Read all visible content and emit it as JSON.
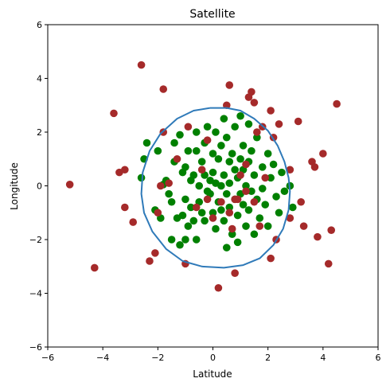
{
  "chart_data": {
    "type": "scatter",
    "title": "Satellite",
    "xlabel": "Latitude",
    "ylabel": "Longitude",
    "xlim": [
      -6,
      6
    ],
    "ylim": [
      -6,
      6
    ],
    "xticks": [
      -6,
      -4,
      -2,
      0,
      2,
      4,
      6
    ],
    "yticks": [
      -6,
      -4,
      -2,
      0,
      2,
      4,
      6
    ],
    "xtick_labels": [
      "−6",
      "−4",
      "−2",
      "0",
      "2",
      "4",
      "6"
    ],
    "ytick_labels": [
      "−6",
      "−4",
      "−2",
      "0",
      "2",
      "4",
      "6"
    ],
    "grid": false,
    "legend": "none",
    "series": [
      {
        "color": "#008000",
        "points": [
          [
            -2.6,
            0.3
          ],
          [
            -2.5,
            1.0
          ],
          [
            -2.4,
            1.6
          ],
          [
            -2.1,
            -0.9
          ],
          [
            -1.9,
            -1.2
          ],
          [
            -1.8,
            0.05
          ],
          [
            -1.7,
            0.2
          ],
          [
            -1.6,
            -0.3
          ],
          [
            -1.5,
            -0.6
          ],
          [
            -1.5,
            -2.0
          ],
          [
            -1.4,
            0.9
          ],
          [
            -1.4,
            1.6
          ],
          [
            -1.3,
            -1.2
          ],
          [
            -1.2,
            -2.2
          ],
          [
            -1.2,
            1.9
          ],
          [
            -1.1,
            0.5
          ],
          [
            -1.1,
            -1.1
          ],
          [
            -1.0,
            -2.0
          ],
          [
            -1.0,
            0.7
          ],
          [
            -1.0,
            -0.5
          ],
          [
            -0.9,
            -1.5
          ],
          [
            -0.9,
            1.3
          ],
          [
            -0.8,
            0.2
          ],
          [
            -0.8,
            -0.8
          ],
          [
            -0.7,
            -1.3
          ],
          [
            -0.7,
            0.4
          ],
          [
            -0.6,
            1.3
          ],
          [
            -0.6,
            -2.0
          ],
          [
            -0.5,
            0.0
          ],
          [
            -0.5,
            -0.6
          ],
          [
            -0.4,
            0.9
          ],
          [
            -0.4,
            -1.0
          ],
          [
            -0.3,
            0.4
          ],
          [
            -0.3,
            1.6
          ],
          [
            -0.3,
            -1.3
          ],
          [
            -0.2,
            -0.2
          ],
          [
            -0.2,
            2.2
          ],
          [
            -0.1,
            0.2
          ],
          [
            -0.1,
            -0.3
          ],
          [
            0.0,
            1.2
          ],
          [
            0.0,
            -1.0
          ],
          [
            0.0,
            0.5
          ],
          [
            0.1,
            0.1
          ],
          [
            0.1,
            -1.6
          ],
          [
            0.1,
            2.0
          ],
          [
            0.2,
            -0.6
          ],
          [
            0.2,
            1.0
          ],
          [
            0.3,
            0.0
          ],
          [
            0.3,
            -0.9
          ],
          [
            0.3,
            1.5
          ],
          [
            0.4,
            2.5
          ],
          [
            0.4,
            -1.3
          ],
          [
            0.4,
            0.4
          ],
          [
            0.5,
            -0.3
          ],
          [
            0.5,
            1.8
          ],
          [
            0.5,
            -2.3
          ],
          [
            0.6,
            0.9
          ],
          [
            0.6,
            -0.8
          ],
          [
            0.6,
            0.1
          ],
          [
            0.7,
            1.2
          ],
          [
            0.7,
            -1.8
          ],
          [
            0.8,
            -0.5
          ],
          [
            0.8,
            0.6
          ],
          [
            0.8,
            2.2
          ],
          [
            0.9,
            -1.1
          ],
          [
            0.9,
            0.3
          ],
          [
            0.9,
            -2.1
          ],
          [
            1.0,
            1.0
          ],
          [
            1.0,
            -0.3
          ],
          [
            1.1,
            1.5
          ],
          [
            1.1,
            -0.7
          ],
          [
            1.1,
            0.6
          ],
          [
            1.2,
            -1.5
          ],
          [
            1.2,
            0.0
          ],
          [
            1.3,
            2.3
          ],
          [
            1.3,
            -0.9
          ],
          [
            1.3,
            0.9
          ],
          [
            1.4,
            -0.2
          ],
          [
            1.4,
            1.3
          ],
          [
            1.5,
            -1.8
          ],
          [
            1.5,
            0.4
          ],
          [
            1.6,
            -0.5
          ],
          [
            1.6,
            1.8
          ],
          [
            1.7,
            -1.2
          ],
          [
            1.8,
            0.7
          ],
          [
            1.8,
            -0.1
          ],
          [
            1.9,
            -0.7
          ],
          [
            2.0,
            1.2
          ],
          [
            2.0,
            -1.5
          ],
          [
            2.1,
            0.3
          ],
          [
            2.2,
            0.8
          ],
          [
            2.3,
            -0.4
          ],
          [
            2.4,
            -1.0
          ],
          [
            2.5,
            0.5
          ],
          [
            2.6,
            -0.2
          ],
          [
            2.8,
            0.0
          ],
          [
            2.9,
            -0.8
          ],
          [
            -2.0,
            1.3
          ],
          [
            -0.6,
            2.0
          ],
          [
            1.0,
            2.6
          ]
        ]
      },
      {
        "color": "#a52a2a",
        "points": [
          [
            -5.2,
            0.05
          ],
          [
            -4.3,
            -3.05
          ],
          [
            -3.6,
            2.7
          ],
          [
            -3.4,
            0.5
          ],
          [
            -3.2,
            0.6
          ],
          [
            -3.2,
            -0.8
          ],
          [
            -2.9,
            -1.35
          ],
          [
            -2.6,
            4.5
          ],
          [
            -2.3,
            -2.8
          ],
          [
            -2.1,
            -2.5
          ],
          [
            -2.0,
            -1.0
          ],
          [
            -1.9,
            0.0
          ],
          [
            -1.8,
            3.6
          ],
          [
            -1.8,
            2.0
          ],
          [
            -1.6,
            0.1
          ],
          [
            -1.3,
            1.0
          ],
          [
            -1.0,
            -2.9
          ],
          [
            -0.9,
            2.2
          ],
          [
            -0.6,
            -0.8
          ],
          [
            -0.4,
            0.6
          ],
          [
            -0.2,
            -0.5
          ],
          [
            0.0,
            -1.2
          ],
          [
            0.2,
            -3.8
          ],
          [
            0.3,
            -0.6
          ],
          [
            0.5,
            3.0
          ],
          [
            0.6,
            3.75
          ],
          [
            0.6,
            -1.0
          ],
          [
            0.7,
            -1.6
          ],
          [
            0.8,
            -3.25
          ],
          [
            0.9,
            -0.5
          ],
          [
            1.0,
            0.4
          ],
          [
            1.2,
            -0.2
          ],
          [
            1.3,
            3.3
          ],
          [
            1.4,
            3.5
          ],
          [
            1.5,
            3.1
          ],
          [
            1.5,
            -0.6
          ],
          [
            1.6,
            2.0
          ],
          [
            1.7,
            -1.5
          ],
          [
            1.8,
            2.2
          ],
          [
            1.9,
            0.3
          ],
          [
            2.1,
            2.8
          ],
          [
            2.1,
            -2.7
          ],
          [
            2.2,
            1.8
          ],
          [
            2.3,
            -2.0
          ],
          [
            2.4,
            2.3
          ],
          [
            2.8,
            0.6
          ],
          [
            2.8,
            -1.2
          ],
          [
            3.1,
            2.4
          ],
          [
            3.2,
            -0.6
          ],
          [
            3.3,
            -1.5
          ],
          [
            3.6,
            0.9
          ],
          [
            3.7,
            0.7
          ],
          [
            3.8,
            -1.9
          ],
          [
            4.0,
            1.2
          ],
          [
            4.2,
            -2.9
          ],
          [
            4.3,
            -1.65
          ],
          [
            4.5,
            3.05
          ],
          [
            0.8,
            -0.5
          ],
          [
            -0.2,
            1.7
          ],
          [
            1.2,
            0.8
          ]
        ]
      }
    ],
    "boundary": {
      "color": "#2f7ab9",
      "points": [
        [
          -0.1,
          2.9
        ],
        [
          0.5,
          2.9
        ],
        [
          1.0,
          2.8
        ],
        [
          1.5,
          2.5
        ],
        [
          2.0,
          2.05
        ],
        [
          2.35,
          1.5
        ],
        [
          2.6,
          0.9
        ],
        [
          2.75,
          0.3
        ],
        [
          2.8,
          -0.2
        ],
        [
          2.75,
          -0.9
        ],
        [
          2.55,
          -1.6
        ],
        [
          2.2,
          -2.2
        ],
        [
          1.7,
          -2.7
        ],
        [
          1.1,
          -2.95
        ],
        [
          0.4,
          -3.05
        ],
        [
          -0.4,
          -3.0
        ],
        [
          -1.1,
          -2.8
        ],
        [
          -1.7,
          -2.35
        ],
        [
          -2.2,
          -1.7
        ],
        [
          -2.5,
          -1.0
        ],
        [
          -2.6,
          -0.3
        ],
        [
          -2.55,
          0.5
        ],
        [
          -2.3,
          1.3
        ],
        [
          -1.9,
          1.95
        ],
        [
          -1.3,
          2.5
        ],
        [
          -0.7,
          2.8
        ],
        [
          -0.1,
          2.9
        ]
      ]
    }
  }
}
